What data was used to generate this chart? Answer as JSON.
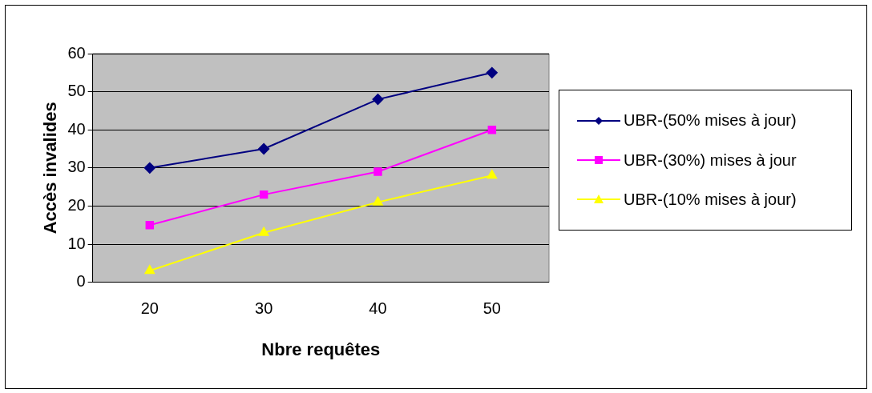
{
  "chart_data": {
    "type": "line",
    "xlabel": "Nbre requêtes",
    "ylabel": "Accès invalides",
    "categories": [
      "20",
      "30",
      "40",
      "50"
    ],
    "ylim": [
      0,
      60
    ],
    "yticks": [
      0,
      10,
      20,
      30,
      40,
      50,
      60
    ],
    "grid": "y",
    "legend": "right",
    "line_style": "solid",
    "series": [
      {
        "name": "UBR-(50% mises à jour)",
        "color": "#000080",
        "values": [
          30,
          35,
          48,
          55
        ],
        "marker": "diamond"
      },
      {
        "name": "UBR-(30%) mises à jour",
        "color": "#ff00ff",
        "values": [
          15,
          23,
          29,
          40
        ],
        "marker": "square"
      },
      {
        "name": "UBR-(10% mises à jour)",
        "color": "#ffff00",
        "values": [
          3,
          13,
          21,
          28
        ],
        "marker": "triangle"
      }
    ]
  }
}
